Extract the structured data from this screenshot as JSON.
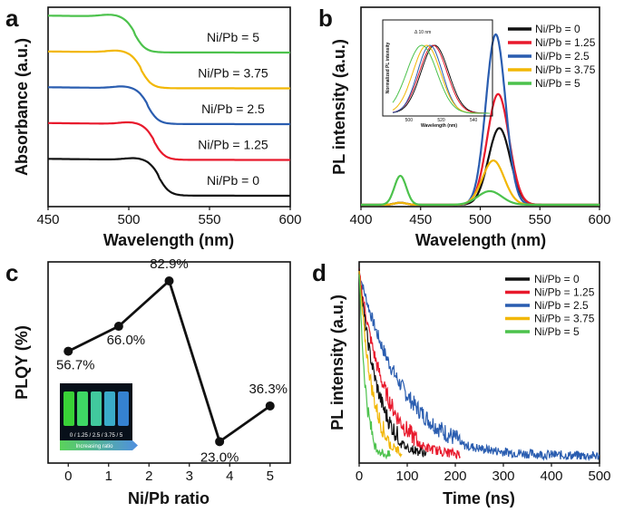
{
  "chart_data": [
    {
      "panel": "a",
      "type": "line",
      "xlabel": "Wavelength (nm)",
      "ylabel": "Absorbance (a.u.)",
      "xlim": [
        450,
        600
      ],
      "xticks": [
        "450",
        "500",
        "550",
        "600"
      ],
      "series": [
        {
          "name": "Ni/Pb = 0",
          "label": "Ni/Pb = 0",
          "color": "#111111",
          "offset": 0.0,
          "edge": 519
        },
        {
          "name": "Ni/Pb = 1.25",
          "label": "Ni/Pb = 1.25",
          "color": "#e8192c",
          "offset": 1.0,
          "edge": 516
        },
        {
          "name": "Ni/Pb = 2.5",
          "label": "Ni/Pb = 2.5",
          "color": "#2a5db0",
          "offset": 2.0,
          "edge": 512
        },
        {
          "name": "Ni/Pb = 3.75",
          "label": "Ni/Pb = 3.75",
          "color": "#f2b705",
          "offset": 3.0,
          "edge": 508
        },
        {
          "name": "Ni/Pb = 5",
          "label": "Ni/Pb = 5",
          "color": "#4cc24c",
          "offset": 4.0,
          "edge": 504
        }
      ]
    },
    {
      "panel": "b",
      "type": "line",
      "xlabel": "Wavelength (nm)",
      "ylabel": "PL intensity (a.u.)",
      "xlim": [
        400,
        600
      ],
      "ylim": [
        0,
        1.0
      ],
      "xticks": [
        "400",
        "450",
        "500",
        "550",
        "600"
      ],
      "series": [
        {
          "name": "Ni/Pb = 0",
          "color": "#111111",
          "peak": 516,
          "height": 0.45,
          "width": 10
        },
        {
          "name": "Ni/Pb = 1.25",
          "color": "#e8192c",
          "peak": 515,
          "height": 0.65,
          "width": 10
        },
        {
          "name": "Ni/Pb = 2.5",
          "color": "#2a5db0",
          "peak": 513,
          "height": 1.0,
          "width": 9
        },
        {
          "name": "Ni/Pb = 3.75",
          "color": "#f2b705",
          "peak": 511,
          "height": 0.26,
          "width": 10
        },
        {
          "name": "Ni/Pb = 5",
          "color": "#4cc24c",
          "peak": 508,
          "height": 0.08,
          "width": 11,
          "second_peak": 433,
          "second_height": 0.17
        }
      ],
      "inset": {
        "ylabel": "Normalized PL intensity",
        "xlabel": "Wavelength (nm)",
        "annotation": "Δ 10 nm",
        "xlim": [
          490,
          550
        ],
        "xticks": [
          "500",
          "520",
          "540"
        ]
      }
    },
    {
      "panel": "c",
      "type": "scatter",
      "xlabel": "Ni/Pb ratio",
      "ylabel": "PLQY (%)",
      "xlim": [
        -0.5,
        5.5
      ],
      "ylim": [
        15,
        90
      ],
      "xticks": [
        "0",
        "1",
        "2",
        "3",
        "4",
        "5"
      ],
      "x": [
        0,
        1.25,
        2.5,
        3.75,
        5
      ],
      "y": [
        56.7,
        66.0,
        82.9,
        23.0,
        36.3
      ],
      "labels": [
        "56.7%",
        "66.0%",
        "82.9%",
        "23.0%",
        "36.3%"
      ],
      "inset_photo": {
        "ratio_labels": "0 / 1.25 / 2.5 / 3.75 / 5",
        "bar_text": "Increasing ratio",
        "vial_colors": [
          "#3ee23a",
          "#43e86a",
          "#47d9a8",
          "#3fb9d8",
          "#3a8ce0"
        ]
      }
    },
    {
      "panel": "d",
      "type": "line",
      "xlabel": "Time (ns)",
      "ylabel": "PL intensity (a.u.)",
      "xlim": [
        0,
        500
      ],
      "xticks": [
        "0",
        "100",
        "200",
        "300",
        "400",
        "500"
      ],
      "series": [
        {
          "name": "Ni/Pb = 0",
          "color": "#111111",
          "tau": 40,
          "cutoff": 140
        },
        {
          "name": "Ni/Pb = 1.25",
          "color": "#e8192c",
          "tau": 55,
          "cutoff": 210
        },
        {
          "name": "Ni/Pb = 2.5",
          "color": "#2a5db0",
          "tau": 95,
          "cutoff": 500
        },
        {
          "name": "Ni/Pb = 3.75",
          "color": "#f2b705",
          "tau": 28,
          "cutoff": 90
        },
        {
          "name": "Ni/Pb = 5",
          "color": "#4cc24c",
          "tau": 14,
          "cutoff": 65
        }
      ]
    }
  ]
}
